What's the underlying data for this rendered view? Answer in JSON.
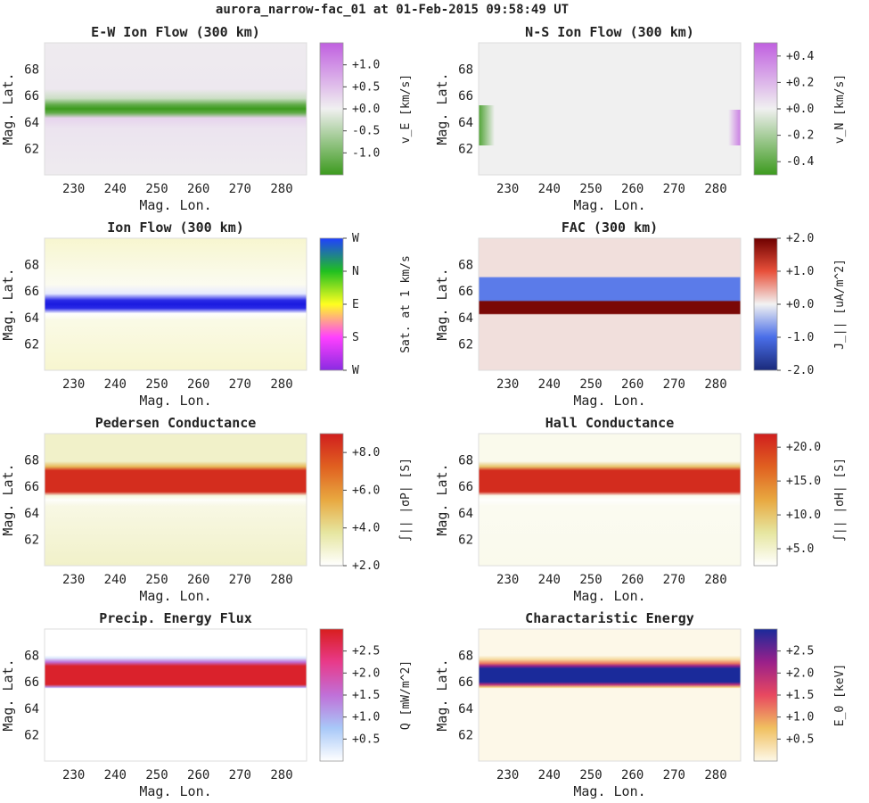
{
  "suptitle": "aurora_narrow-fac_01 at 01-Feb-2015 09:58:49 UT",
  "axes": {
    "xlabel": "Mag. Lon.",
    "ylabel": "Mag. Lat."
  },
  "chart_data": [
    {
      "type": "heatmap",
      "title": "E-W Ion Flow (300 km)",
      "xlabel": "Mag. Lon.",
      "ylabel": "Mag. Lat.",
      "xlim": [
        223,
        286
      ],
      "ylim": [
        60,
        70
      ],
      "xticks": [
        230,
        240,
        250,
        260,
        270,
        280
      ],
      "yticks": [
        62,
        64,
        66,
        68
      ],
      "colorbar": {
        "label": "v_E [km/s]",
        "range": [
          -1.5,
          1.5
        ],
        "ticks": [
          "+1.0",
          "+0.5",
          "+0.0",
          "-0.5",
          "-1.0"
        ],
        "tick_values": [
          1.0,
          0.5,
          0.0,
          -0.5,
          -1.0
        ],
        "colors": [
          "#3c9a1e",
          "#f0f0f0",
          "#c060e0"
        ]
      },
      "rows": [
        {
          "lat": 60.0,
          "value": 0.05
        },
        {
          "lat": 63.5,
          "value": 0.12
        },
        {
          "lat": 64.3,
          "value": 0.3
        },
        {
          "lat": 64.7,
          "value": -1.2
        },
        {
          "lat": 65.0,
          "value": -1.5
        },
        {
          "lat": 65.3,
          "value": -1.2
        },
        {
          "lat": 65.8,
          "value": -0.3
        },
        {
          "lat": 66.5,
          "value": 0.08
        },
        {
          "lat": 70.0,
          "value": 0.05
        }
      ]
    },
    {
      "type": "heatmap",
      "title": "N-S Ion Flow (300 km)",
      "xlabel": "Mag. Lon.",
      "ylabel": "Mag. Lat.",
      "xlim": [
        223,
        286
      ],
      "ylim": [
        60,
        70
      ],
      "xticks": [
        230,
        240,
        250,
        260,
        270,
        280
      ],
      "yticks": [
        62,
        64,
        66,
        68
      ],
      "colorbar": {
        "label": "v_N [km/s]",
        "range": [
          -0.5,
          0.5
        ],
        "ticks": [
          "+0.4",
          "+0.2",
          "+0.0",
          "-0.2",
          "-0.4"
        ],
        "tick_values": [
          0.4,
          0.2,
          0.0,
          -0.2,
          -0.4
        ],
        "colors": [
          "#3c9a1e",
          "#f0f0f0",
          "#c060e0"
        ]
      },
      "rows": [
        {
          "lat": 60.0,
          "value": 0.0
        },
        {
          "lat": 70.0,
          "value": 0.0
        }
      ]
    },
    {
      "type": "heatmap",
      "title": "Ion Flow (300 km)",
      "xlabel": "Mag. Lon.",
      "ylabel": "Mag. Lat.",
      "xlim": [
        223,
        286
      ],
      "ylim": [
        60,
        70
      ],
      "xticks": [
        230,
        240,
        250,
        260,
        270,
        280
      ],
      "yticks": [
        62,
        64,
        66,
        68
      ],
      "colorbar": {
        "label": "Sat. at 1 km/s",
        "range": [
          0,
          1
        ],
        "ticks": [
          "W",
          "N",
          "E",
          "S",
          "W"
        ],
        "tick_values": [
          1.0,
          0.75,
          0.5,
          0.25,
          0.0
        ],
        "colors": [
          "#8a2be2",
          "#ff40ff",
          "#ffff20",
          "#20c020",
          "#2040ff"
        ]
      },
      "rows": [
        {
          "lat": 60.0,
          "value": "#f7f6cf"
        },
        {
          "lat": 63.8,
          "value": "#fafae6"
        },
        {
          "lat": 64.3,
          "value": "#ffffff"
        },
        {
          "lat": 64.7,
          "value": "#2a2ae6"
        },
        {
          "lat": 65.0,
          "value": "#1a1ae0"
        },
        {
          "lat": 65.3,
          "value": "#2a2ae6"
        },
        {
          "lat": 65.8,
          "value": "#e6eaff"
        },
        {
          "lat": 66.5,
          "value": "#fbfbf0"
        },
        {
          "lat": 70.0,
          "value": "#f7f6cf"
        }
      ]
    },
    {
      "type": "heatmap",
      "title": "FAC (300 km)",
      "xlabel": "Mag. Lon.",
      "ylabel": "Mag. Lat.",
      "xlim": [
        223,
        286
      ],
      "ylim": [
        60,
        70
      ],
      "xticks": [
        230,
        240,
        250,
        260,
        270,
        280
      ],
      "yticks": [
        62,
        64,
        66,
        68
      ],
      "colorbar": {
        "label": "J_|| [uA/m^2]",
        "range": [
          -2.0,
          2.0
        ],
        "ticks": [
          "+2.0",
          "+1.0",
          "+0.0",
          "-1.0",
          "-2.0"
        ],
        "tick_values": [
          2.0,
          1.0,
          0.0,
          -1.0,
          -2.0
        ],
        "colors": [
          "#1a2a7a",
          "#4a6ee8",
          "#f2f2f2",
          "#e8503a",
          "#6e0000"
        ]
      },
      "rows": [
        {
          "lat": 60.0,
          "value": 0.12
        },
        {
          "lat": 64.2,
          "value": 0.12
        },
        {
          "lat": 64.3,
          "value": 1.9
        },
        {
          "lat": 65.2,
          "value": 1.9
        },
        {
          "lat": 65.3,
          "value": -0.9
        },
        {
          "lat": 67.0,
          "value": -0.9
        },
        {
          "lat": 67.1,
          "value": 0.12
        },
        {
          "lat": 70.0,
          "value": 0.12
        }
      ]
    },
    {
      "type": "heatmap",
      "title": "Pedersen Conductance",
      "xlabel": "Mag. Lon.",
      "ylabel": "Mag. Lat.",
      "xlim": [
        223,
        286
      ],
      "ylim": [
        60,
        70
      ],
      "xticks": [
        230,
        240,
        250,
        260,
        270,
        280
      ],
      "yticks": [
        62,
        64,
        66,
        68
      ],
      "colorbar": {
        "label": "∫|| |σP| [S]",
        "range": [
          2.0,
          9.0
        ],
        "ticks": [
          "+8.0",
          "+6.0",
          "+4.0",
          "+2.0"
        ],
        "tick_values": [
          8.0,
          6.0,
          4.0,
          2.0
        ],
        "colors": [
          "#ffffff",
          "#e6e6a0",
          "#e8a840",
          "#e06020",
          "#d01e1e"
        ]
      },
      "rows": [
        {
          "lat": 60.0,
          "value": 3.0
        },
        {
          "lat": 64.5,
          "value": 2.5
        },
        {
          "lat": 65.0,
          "value": 2.1
        },
        {
          "lat": 65.3,
          "value": 2.6
        },
        {
          "lat": 65.6,
          "value": 8.6
        },
        {
          "lat": 67.2,
          "value": 8.6
        },
        {
          "lat": 67.5,
          "value": 5.0
        },
        {
          "lat": 67.9,
          "value": 3.0
        },
        {
          "lat": 70.0,
          "value": 3.0
        }
      ]
    },
    {
      "type": "heatmap",
      "title": "Hall Conductance",
      "xlabel": "Mag. Lon.",
      "ylabel": "Mag. Lat.",
      "xlim": [
        223,
        286
      ],
      "ylim": [
        60,
        70
      ],
      "xticks": [
        230,
        240,
        250,
        260,
        270,
        280
      ],
      "yticks": [
        62,
        64,
        66,
        68
      ],
      "colorbar": {
        "label": "∫|| |σH| [S]",
        "range": [
          2.5,
          22.0
        ],
        "ticks": [
          "+20.0",
          "+15.0",
          "+10.0",
          "+5.0"
        ],
        "tick_values": [
          20.0,
          15.0,
          10.0,
          5.0
        ],
        "colors": [
          "#ffffff",
          "#e6e6a0",
          "#e8a840",
          "#e06020",
          "#d01e1e"
        ]
      },
      "rows": [
        {
          "lat": 60.0,
          "value": 3.5
        },
        {
          "lat": 64.5,
          "value": 3.2
        },
        {
          "lat": 65.0,
          "value": 2.6
        },
        {
          "lat": 65.3,
          "value": 3.5
        },
        {
          "lat": 65.6,
          "value": 21.0
        },
        {
          "lat": 67.2,
          "value": 21.0
        },
        {
          "lat": 67.5,
          "value": 10.0
        },
        {
          "lat": 67.9,
          "value": 3.5
        },
        {
          "lat": 70.0,
          "value": 3.5
        }
      ]
    },
    {
      "type": "heatmap",
      "title": "Precip. Energy Flux",
      "xlabel": "Mag. Lon.",
      "ylabel": "Mag. Lat.",
      "xlim": [
        223,
        286
      ],
      "ylim": [
        60,
        70
      ],
      "xticks": [
        230,
        240,
        250,
        260,
        270,
        280
      ],
      "yticks": [
        62,
        64,
        66,
        68
      ],
      "colorbar": {
        "label": "Q [mW/m^2]",
        "range": [
          0.0,
          3.0
        ],
        "ticks": [
          "+2.5",
          "+2.0",
          "+1.5",
          "+1.0",
          "+0.5"
        ],
        "tick_values": [
          2.5,
          2.0,
          1.5,
          1.0,
          0.5
        ],
        "colors": [
          "#ffffff",
          "#a8c8f8",
          "#c070d8",
          "#e83a8a",
          "#d81e1e"
        ]
      },
      "rows": [
        {
          "lat": 60.0,
          "value": 0.0
        },
        {
          "lat": 65.5,
          "value": 0.0
        },
        {
          "lat": 65.6,
          "value": 1.2
        },
        {
          "lat": 65.8,
          "value": 2.9
        },
        {
          "lat": 67.2,
          "value": 2.9
        },
        {
          "lat": 67.5,
          "value": 1.5
        },
        {
          "lat": 67.8,
          "value": 0.3
        },
        {
          "lat": 68.0,
          "value": 0.0
        },
        {
          "lat": 70.0,
          "value": 0.0
        }
      ]
    },
    {
      "type": "heatmap",
      "title": "Charactaristic Energy",
      "xlabel": "Mag. Lon.",
      "ylabel": "Mag. Lat.",
      "xlim": [
        223,
        286
      ],
      "ylim": [
        60,
        70
      ],
      "xticks": [
        230,
        240,
        250,
        260,
        270,
        280
      ],
      "yticks": [
        62,
        64,
        66,
        68
      ],
      "colorbar": {
        "label": "E_0 [keV]",
        "range": [
          0.0,
          3.0
        ],
        "ticks": [
          "+2.5",
          "+2.0",
          "+1.5",
          "+1.0",
          "+0.5"
        ],
        "tick_values": [
          2.5,
          2.0,
          1.5,
          1.0,
          0.5
        ],
        "colors": [
          "#fdf8e8",
          "#f0c060",
          "#e84860",
          "#9a208a",
          "#1a2a9a"
        ]
      },
      "rows": [
        {
          "lat": 60.0,
          "value": 0.0
        },
        {
          "lat": 65.5,
          "value": 0.0
        },
        {
          "lat": 65.6,
          "value": 0.6
        },
        {
          "lat": 65.8,
          "value": 2.0
        },
        {
          "lat": 66.0,
          "value": 3.0
        },
        {
          "lat": 67.0,
          "value": 3.0
        },
        {
          "lat": 67.2,
          "value": 2.3
        },
        {
          "lat": 67.4,
          "value": 1.2
        },
        {
          "lat": 67.7,
          "value": 0.4
        },
        {
          "lat": 68.0,
          "value": 0.0
        },
        {
          "lat": 70.0,
          "value": 0.0
        }
      ]
    }
  ]
}
